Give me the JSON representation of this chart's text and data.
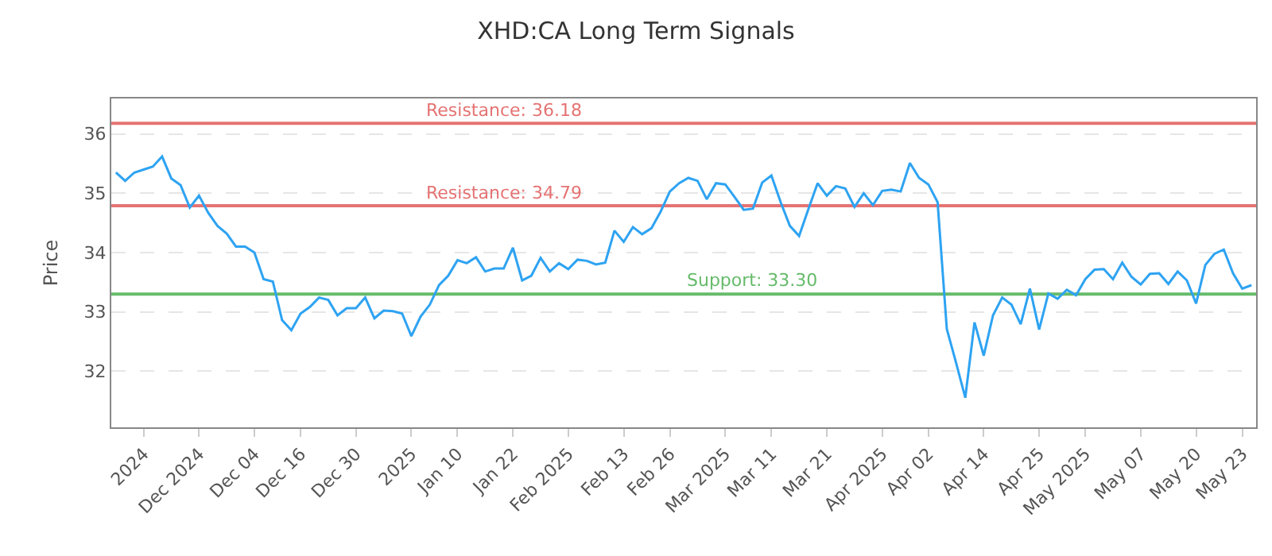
{
  "chart_data": {
    "type": "line",
    "title": "XHD:CA Long Term Signals",
    "ylabel": "Price",
    "categories": [
      null,
      null,
      null,
      "2024",
      null,
      null,
      null,
      null,
      null,
      "Dec 2024",
      null,
      null,
      null,
      null,
      null,
      "Dec 04",
      null,
      null,
      null,
      null,
      "Dec 16",
      null,
      null,
      null,
      null,
      null,
      "Dec 30",
      null,
      null,
      null,
      null,
      null,
      "2025",
      null,
      null,
      null,
      null,
      "Jan 10",
      null,
      null,
      null,
      null,
      null,
      "Jan 22",
      null,
      null,
      null,
      null,
      null,
      "Feb 2025",
      null,
      null,
      null,
      null,
      null,
      "Feb 13",
      null,
      null,
      null,
      null,
      "Feb 26",
      null,
      null,
      null,
      null,
      null,
      "Mar 2025",
      null,
      null,
      null,
      null,
      "Mar 11",
      null,
      null,
      null,
      null,
      null,
      "Mar 21",
      null,
      null,
      null,
      null,
      null,
      "Apr 2025",
      null,
      null,
      null,
      null,
      "Apr 02",
      null,
      null,
      null,
      null,
      null,
      "Apr 14",
      null,
      null,
      null,
      null,
      null,
      "Apr 25",
      null,
      null,
      null,
      null,
      "May 2025",
      null,
      null,
      null,
      null,
      null,
      "May 07",
      null,
      null,
      null,
      null,
      null,
      "May 20",
      null,
      null,
      null,
      null,
      "May 23",
      null
    ],
    "series": [
      {
        "color": "#2ea3f2",
        "values": [
          35.35,
          35.21,
          35.35,
          35.4,
          35.45,
          35.62,
          35.25,
          35.14,
          34.76,
          34.96,
          34.67,
          34.45,
          34.32,
          34.1,
          34.1,
          34.0,
          33.55,
          33.51,
          32.86,
          32.69,
          32.97,
          33.08,
          33.24,
          33.2,
          32.94,
          33.06,
          33.06,
          33.24,
          32.89,
          33.02,
          33.01,
          32.97,
          32.59,
          32.92,
          33.12,
          33.45,
          33.61,
          33.87,
          33.82,
          33.92,
          33.68,
          33.73,
          33.73,
          34.08,
          33.53,
          33.61,
          33.91,
          33.68,
          33.82,
          33.72,
          33.88,
          33.86,
          33.8,
          33.83,
          34.37,
          34.18,
          34.43,
          34.31,
          34.41,
          34.69,
          35.03,
          35.17,
          35.26,
          35.21,
          34.9,
          35.17,
          35.15,
          34.94,
          34.72,
          34.74,
          35.18,
          35.3,
          34.85,
          34.45,
          34.28,
          34.73,
          35.17,
          34.96,
          35.12,
          35.08,
          34.77,
          35.0,
          34.8,
          35.04,
          35.06,
          35.03,
          35.51,
          35.26,
          35.15,
          34.85,
          32.71,
          32.14,
          31.55,
          32.82,
          32.26,
          32.94,
          33.24,
          33.12,
          32.79,
          33.39,
          32.7,
          33.31,
          33.22,
          33.37,
          33.28,
          33.55,
          33.71,
          33.72,
          33.55,
          33.83,
          33.59,
          33.46,
          33.64,
          33.65,
          33.47,
          33.68,
          33.53,
          33.14,
          33.79,
          33.98,
          34.05,
          33.65,
          33.39,
          33.45
        ]
      }
    ],
    "ylim": [
      31.05,
      36.6
    ],
    "yticks": [
      32,
      33,
      34,
      35,
      36
    ],
    "grid": "y",
    "marker": "none",
    "line_style": "solid",
    "ref_lines": [
      {
        "axis": "y",
        "value": 36.18,
        "label": "Resistance: 36.18",
        "color": "#e57373"
      },
      {
        "axis": "y",
        "value": 34.79,
        "label": "Resistance: 34.79",
        "color": "#e57373"
      },
      {
        "axis": "y",
        "value": 33.3,
        "label": "Support: 33.30",
        "color": "#66bb6a"
      }
    ]
  }
}
